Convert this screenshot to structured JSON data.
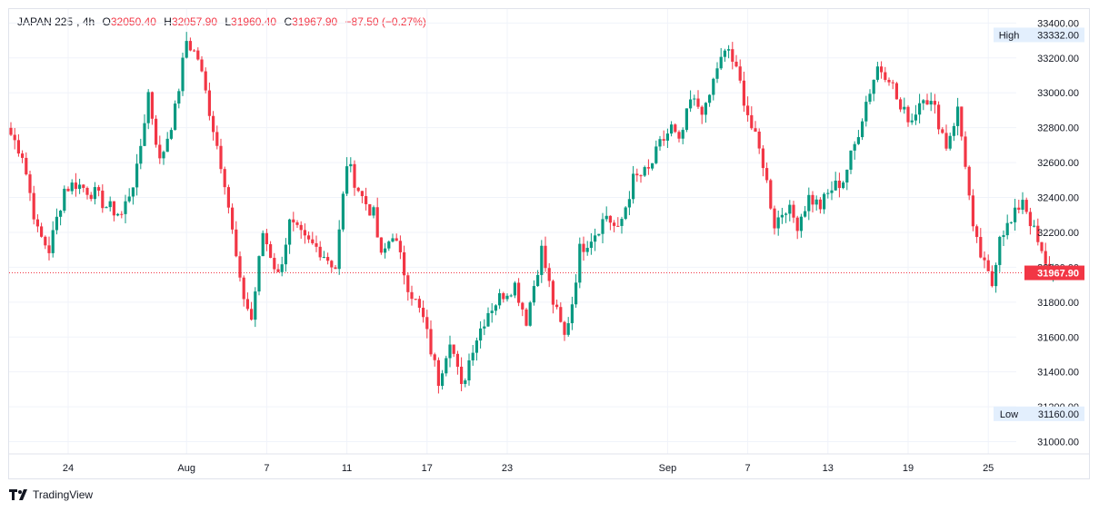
{
  "header": {
    "symbol": "JAPAN 225",
    "interval": "4h",
    "open_label": "O",
    "open": "32050.40",
    "high_label": "H",
    "high": "32057.90",
    "low_label": "L",
    "low": "31960.40",
    "close_label": "C",
    "close": "31967.90",
    "change": "−87.50 (−0.27%)"
  },
  "markers": {
    "high_label": "High",
    "high_value": "33332.00",
    "low_label": "Low",
    "low_value": "31160.00",
    "last_price": "31967.90"
  },
  "footer": {
    "brand": "TradingView"
  },
  "colors": {
    "up": "#089981",
    "down": "#f23645",
    "grid": "#f0f3fa",
    "marker_bg": "#e3effd"
  },
  "chart_data": {
    "type": "candlestick",
    "title": "JAPAN 225, 4h",
    "ylim": [
      30930,
      33480
    ],
    "y_ticks": [
      31000,
      31200,
      31400,
      31600,
      31800,
      32000,
      32200,
      32400,
      32600,
      32800,
      33000,
      33200,
      33400
    ],
    "y_tick_labels": [
      "31000.00",
      "31200.00",
      "31400.00",
      "31600.00",
      "31800.00",
      "32000.00",
      "32200.00",
      "32400.00",
      "32600.00",
      "32800.00",
      "33000.00",
      "33200.00",
      "33400.00"
    ],
    "x_labels": [
      "24",
      "Aug",
      "7",
      "11",
      "17",
      "23",
      "Sep",
      "7",
      "13",
      "19",
      "25"
    ],
    "x_label_bars": [
      15,
      46,
      67,
      88,
      109,
      130,
      172,
      193,
      214,
      235,
      256
    ],
    "total_bars": 290,
    "key_points": [
      [
        0,
        32760
      ],
      [
        3,
        32650
      ],
      [
        7,
        32200
      ],
      [
        10,
        32100
      ],
      [
        14,
        32450
      ],
      [
        17,
        32480
      ],
      [
        22,
        32420
      ],
      [
        25,
        32350
      ],
      [
        29,
        32300
      ],
      [
        33,
        32550
      ],
      [
        36,
        33000
      ],
      [
        39,
        32600
      ],
      [
        43,
        32900
      ],
      [
        46,
        33300
      ],
      [
        49,
        33200
      ],
      [
        52,
        32900
      ],
      [
        56,
        32500
      ],
      [
        60,
        31900
      ],
      [
        63,
        31700
      ],
      [
        66,
        32200
      ],
      [
        70,
        31950
      ],
      [
        73,
        32250
      ],
      [
        77,
        32150
      ],
      [
        81,
        32100
      ],
      [
        85,
        32000
      ],
      [
        88,
        32600
      ],
      [
        92,
        32400
      ],
      [
        95,
        32300
      ],
      [
        97,
        32050
      ],
      [
        100,
        32200
      ],
      [
        104,
        31900
      ],
      [
        108,
        31700
      ],
      [
        112,
        31350
      ],
      [
        115,
        31600
      ],
      [
        118,
        31300
      ],
      [
        121,
        31550
      ],
      [
        125,
        31750
      ],
      [
        129,
        31850
      ],
      [
        132,
        31900
      ],
      [
        135,
        31700
      ],
      [
        139,
        32100
      ],
      [
        142,
        31800
      ],
      [
        145,
        31600
      ],
      [
        147,
        31800
      ],
      [
        149,
        32100
      ],
      [
        153,
        32200
      ],
      [
        156,
        32300
      ],
      [
        159,
        32200
      ],
      [
        163,
        32500
      ],
      [
        167,
        32550
      ],
      [
        170,
        32700
      ],
      [
        173,
        32800
      ],
      [
        175,
        32700
      ],
      [
        178,
        32950
      ],
      [
        182,
        32900
      ],
      [
        185,
        33150
      ],
      [
        188,
        33250
      ],
      [
        191,
        33050
      ],
      [
        194,
        32800
      ],
      [
        197,
        32600
      ],
      [
        200,
        32250
      ],
      [
        203,
        32350
      ],
      [
        206,
        32250
      ],
      [
        209,
        32400
      ],
      [
        212,
        32350
      ],
      [
        215,
        32450
      ],
      [
        218,
        32500
      ],
      [
        221,
        32700
      ],
      [
        224,
        32950
      ],
      [
        227,
        33150
      ],
      [
        230,
        33100
      ],
      [
        233,
        32900
      ],
      [
        236,
        32850
      ],
      [
        239,
        33000
      ],
      [
        242,
        32900
      ],
      [
        245,
        32700
      ],
      [
        248,
        32900
      ],
      [
        250,
        32600
      ],
      [
        252,
        32200
      ],
      [
        255,
        32000
      ],
      [
        257,
        31900
      ],
      [
        259,
        32200
      ],
      [
        262,
        32250
      ],
      [
        265,
        32400
      ],
      [
        268,
        32200
      ],
      [
        271,
        32000
      ],
      [
        273,
        31968
      ]
    ]
  }
}
